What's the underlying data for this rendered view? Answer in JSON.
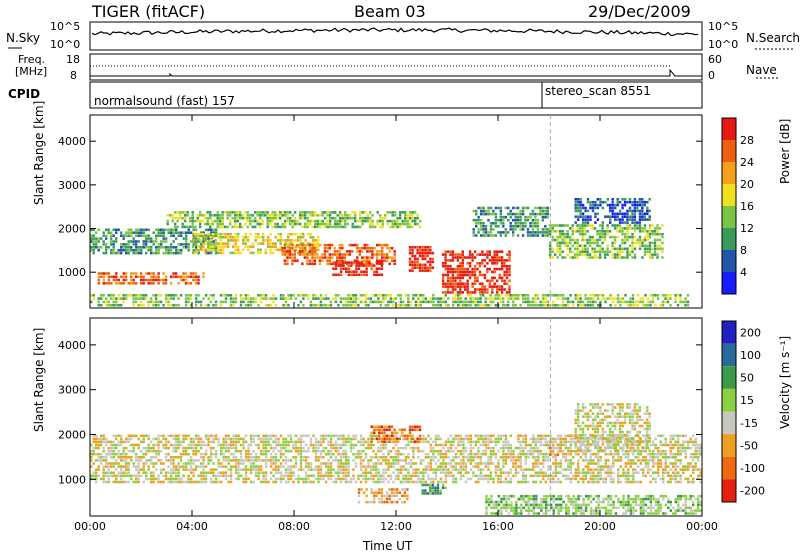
{
  "header": {
    "station": "TIGER (fitACF)",
    "beam": "Beam 03",
    "date": "29/Dec/2009"
  },
  "summary": {
    "nsky_label": "N.Sky",
    "nsearch_label": "N.Search",
    "noise_ticks_left": [
      "10^5",
      "10^0"
    ],
    "noise_ticks_right": [
      "10^5",
      "10^0"
    ],
    "freq_label_line1": "Freq.",
    "freq_label_line2": "[MHz]",
    "freq_ticks": [
      "18",
      "8"
    ],
    "nave_label": "Nave",
    "nave_ticks": [
      "60",
      "0"
    ],
    "cpid_label": "CPID",
    "cpid_1": "normalsound (fast) 157",
    "cpid_2": "stereo_scan 8551"
  },
  "chart_data": [
    {
      "type": "heatmap",
      "title": "",
      "xlabel": "Time UT",
      "ylabel": "Slant Range [km]",
      "x_ticks": [
        "00:00",
        "04:00",
        "08:00",
        "12:00",
        "16:00",
        "20:00",
        "00:00"
      ],
      "x_range_hours": [
        0,
        24
      ],
      "y_ticks": [
        "1000",
        "2000",
        "3000",
        "4000"
      ],
      "ylim": [
        180,
        4600
      ],
      "colorbar_label": "Power [dB]",
      "colorbar_ticks": [
        "4",
        "8",
        "12",
        "16",
        "20",
        "24",
        "28"
      ],
      "colorbar_colors": [
        "#1a1aff",
        "#2356a8",
        "#3a9a5a",
        "#7ac443",
        "#f0e020",
        "#f5a018",
        "#ee6010",
        "#e61a10"
      ],
      "grid": false
    },
    {
      "type": "heatmap",
      "title": "",
      "xlabel": "Time UT",
      "ylabel": "Slant Range [km]",
      "x_ticks": [
        "00:00",
        "04:00",
        "08:00",
        "12:00",
        "16:00",
        "20:00",
        "00:00"
      ],
      "x_range_hours": [
        0,
        24
      ],
      "y_ticks": [
        "1000",
        "2000",
        "3000",
        "4000"
      ],
      "ylim": [
        180,
        4600
      ],
      "colorbar_label": "Velocity [m s⁻¹]",
      "colorbar_ticks": [
        "200",
        "100",
        "50",
        "15",
        "-15",
        "-50",
        "-100",
        "-200"
      ],
      "colorbar_colors": [
        "#2020c0",
        "#2a6a9a",
        "#3a9a4a",
        "#8ad040",
        "#c8c8c0",
        "#f0a020",
        "#ee6a10",
        "#e62010"
      ],
      "grid": false
    }
  ],
  "features": {
    "power_bands": [
      {
        "t0": 0.0,
        "t1": 5.0,
        "r0": 1400,
        "r1": 2000,
        "level": 2
      },
      {
        "t0": 0.3,
        "t1": 4.5,
        "r0": 700,
        "r1": 1000,
        "level": 6
      },
      {
        "t0": 4.0,
        "t1": 9.0,
        "r0": 1400,
        "r1": 1900,
        "level": 4
      },
      {
        "t0": 7.5,
        "t1": 12.0,
        "r0": 1150,
        "r1": 1650,
        "level": 6
      },
      {
        "t0": 9.5,
        "t1": 11.5,
        "r0": 900,
        "r1": 1250,
        "level": 7
      },
      {
        "t0": 12.5,
        "t1": 13.5,
        "r0": 1000,
        "r1": 1600,
        "level": 7
      },
      {
        "t0": 13.8,
        "t1": 16.5,
        "r0": 500,
        "r1": 1500,
        "level": 7
      },
      {
        "t0": 18.0,
        "t1": 22.5,
        "r0": 1300,
        "r1": 2100,
        "level": 3
      },
      {
        "t0": 3.0,
        "t1": 13.0,
        "r0": 2000,
        "r1": 2400,
        "level": 3
      },
      {
        "t0": 15.0,
        "t1": 18.0,
        "r0": 1800,
        "r1": 2500,
        "level": 2
      },
      {
        "t0": 19.0,
        "t1": 22.0,
        "r0": 2100,
        "r1": 2700,
        "level": 1
      },
      {
        "t0": 0.0,
        "t1": 23.5,
        "r0": 200,
        "r1": 500,
        "level": 3
      }
    ],
    "velocity_bands": [
      {
        "t0": 0.0,
        "t1": 24.0,
        "r0": 900,
        "r1": 2000,
        "level": 4
      },
      {
        "t0": 10.5,
        "t1": 12.5,
        "r0": 450,
        "r1": 800,
        "level": 5
      },
      {
        "t0": 13.0,
        "t1": 14.0,
        "r0": 650,
        "r1": 900,
        "level": 2
      },
      {
        "t0": 15.5,
        "t1": 24.0,
        "r0": 200,
        "r1": 650,
        "level": 3
      },
      {
        "t0": 18.0,
        "t1": 18.5,
        "r0": 1500,
        "r1": 1800,
        "level": 5
      },
      {
        "t0": 11.0,
        "t1": 13.0,
        "r0": 1800,
        "r1": 2200,
        "level": 6
      },
      {
        "t0": 19.0,
        "t1": 22.0,
        "r0": 1600,
        "r1": 2700,
        "level": 4
      }
    ]
  }
}
